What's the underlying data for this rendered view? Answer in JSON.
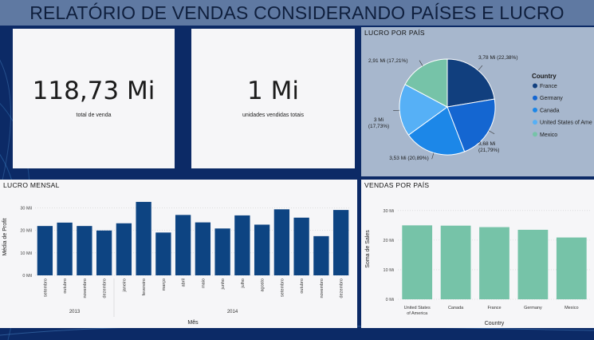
{
  "header": {
    "title": "RELATÓRIO DE VENDAS CONSIDERANDO PAÍSES E LUCRO"
  },
  "kpis": [
    {
      "value": "118,73 Mi",
      "label": "total de venda"
    },
    {
      "value": "1 Mi",
      "label": "unidades vendidas totais"
    }
  ],
  "profit_by_country": {
    "title": "LUCRO POR PAÍS",
    "legend_title": "Country",
    "chart_data": {
      "type": "pie",
      "slices": [
        {
          "label": "France",
          "value": 3.78,
          "display": "3,78 Mi (22,38%)",
          "color": "#113f7e"
        },
        {
          "label": "Germany",
          "value": 3.68,
          "display": "3,68 Mi (21,79%)",
          "color": "#1466d1"
        },
        {
          "label": "Canada",
          "value": 3.53,
          "display": "3,53 Mi (20,89%)",
          "color": "#1c87e8"
        },
        {
          "label": "United States of Ame",
          "value": 3.0,
          "display": "3 Mi (17,73%)",
          "color": "#56b0f6"
        },
        {
          "label": "Mexico",
          "value": 2.91,
          "display": "2,91 Mi (17,21%)",
          "color": "#76c3a8"
        }
      ]
    }
  },
  "monthly_profit": {
    "title": "LUCRO MENSAL",
    "chart_data": {
      "type": "bar",
      "ylabel": "Média de Profit",
      "xlabel": "Mês",
      "ylim": [
        0,
        34
      ],
      "yticks": [
        "0 Mil",
        "10 Mil",
        "20 Mil",
        "30 Mil"
      ],
      "categories": [
        "setembro",
        "outubro",
        "novembro",
        "dezembro",
        "janeiro",
        "fevereiro",
        "março",
        "abril",
        "maio",
        "junho",
        "julho",
        "agosto",
        "setembro",
        "outubro",
        "novembro",
        "dezembro"
      ],
      "years": [
        {
          "label": "2013",
          "span": 4
        },
        {
          "label": "2014",
          "span": 12
        }
      ],
      "values": [
        21.9,
        23.4,
        21.9,
        19.9,
        23.1,
        32.6,
        19.0,
        26.8,
        23.5,
        20.8,
        26.6,
        22.5,
        29.3,
        25.6,
        17.4,
        29.0
      ],
      "color": "#0d4482"
    }
  },
  "sales_by_country": {
    "title": "VENDAS POR PAÍS",
    "chart_data": {
      "type": "bar",
      "ylabel": "Soma de Sales",
      "xlabel": "Country",
      "ylim": [
        0,
        34
      ],
      "yticks": [
        "0 Mi",
        "10 Mi",
        "20 Mi",
        "30 Mi"
      ],
      "categories": [
        "United States of America",
        "Canada",
        "France",
        "Germany",
        "Mexico"
      ],
      "category_lines": [
        [
          "United States",
          "of America"
        ],
        [
          "Canada"
        ],
        [
          "France"
        ],
        [
          "Germany"
        ],
        [
          "Mexico"
        ]
      ],
      "values": [
        25.0,
        24.9,
        24.4,
        23.5,
        20.9
      ],
      "color": "#76c3a8"
    }
  }
}
